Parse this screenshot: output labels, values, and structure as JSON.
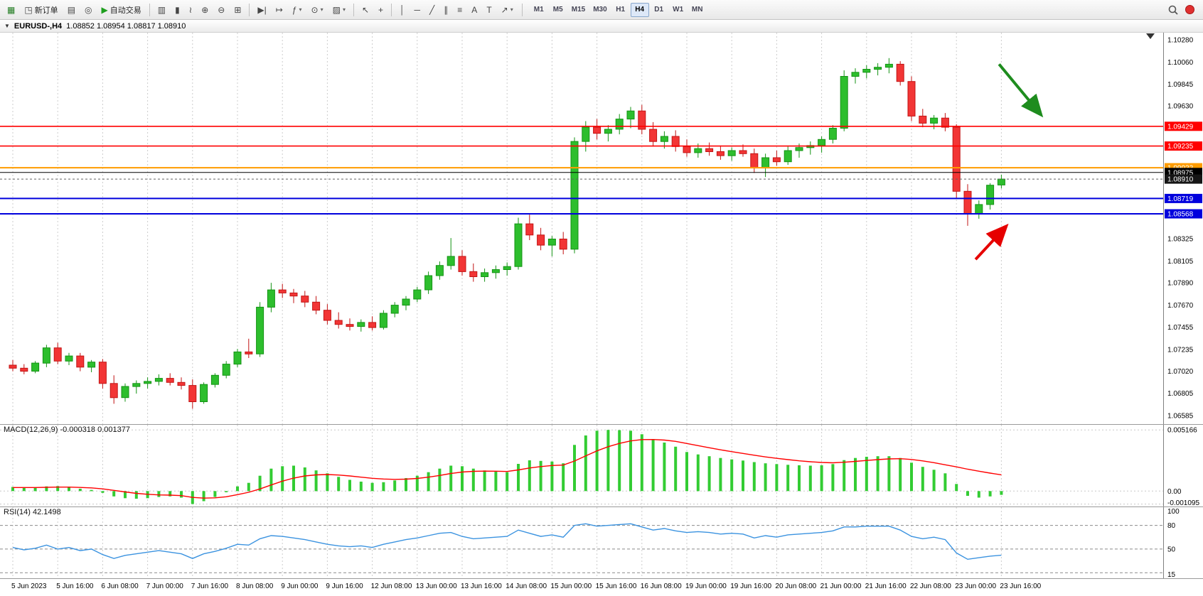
{
  "window": {
    "title": "EURUSD-,H4"
  },
  "toolbar": {
    "groups": [
      {
        "items": [
          {
            "name": "new-chart-button",
            "glyph": "▦",
            "color": "#1e7a1e"
          },
          {
            "name": "new-order-button",
            "glyph": "◳",
            "label": "新订单"
          },
          {
            "name": "screenshot-button",
            "glyph": "▤"
          },
          {
            "name": "community-button",
            "glyph": "◎"
          },
          {
            "name": "autotrading-button",
            "glyph": "▶",
            "label": "自动交易",
            "color": "#1e9e1e"
          }
        ]
      },
      {
        "items": [
          {
            "name": "bar-chart-button",
            "glyph": "▥"
          },
          {
            "name": "candlestick-chart-button",
            "glyph": "▮"
          },
          {
            "name": "line-chart-button",
            "glyph": "≀"
          },
          {
            "name": "zoom-in-button",
            "glyph": "⊕"
          },
          {
            "name": "zoom-out-button",
            "glyph": "⊖"
          },
          {
            "name": "tile-windows-button",
            "glyph": "⊞"
          }
        ]
      },
      {
        "items": [
          {
            "name": "auto-scroll-button",
            "glyph": "▶|"
          },
          {
            "name": "chart-shift-button",
            "glyph": "↦"
          },
          {
            "name": "indicators-button",
            "glyph": "ƒ",
            "caret": true
          },
          {
            "name": "periods-button",
            "glyph": "⊙",
            "caret": true
          },
          {
            "name": "templates-button",
            "glyph": "▨",
            "caret": true
          }
        ]
      },
      {
        "items": [
          {
            "name": "cursor-button",
            "glyph": "↖"
          },
          {
            "name": "crosshair-button",
            "glyph": "+"
          }
        ]
      },
      {
        "items": [
          {
            "name": "vertical-line-button",
            "glyph": "│"
          },
          {
            "name": "horizontal-line-button",
            "glyph": "─"
          },
          {
            "name": "trendline-button",
            "glyph": "╱"
          },
          {
            "name": "channel-button",
            "glyph": "∥"
          },
          {
            "name": "fibonacci-button",
            "glyph": "≡"
          },
          {
            "name": "text-button",
            "glyph": "A"
          },
          {
            "name": "text-label-button",
            "glyph": "T"
          },
          {
            "name": "arrows-button",
            "glyph": "↗",
            "caret": true
          }
        ]
      }
    ],
    "timeframes": [
      "M1",
      "M5",
      "M15",
      "M30",
      "H1",
      "H4",
      "D1",
      "W1",
      "MN"
    ],
    "active_timeframe": "H4"
  },
  "titlebar": {
    "dropdown_icon": "▼",
    "shift_marker_icon": "▼",
    "symbol_period": "EURUSD-,H4",
    "ohlc": "1.08852  1.08954  1.08817  1.08910"
  },
  "colors": {
    "up": "#2DBE2D",
    "up_border": "#149314",
    "down": "#F23535",
    "down_border": "#C21414",
    "grid": "#cccccc",
    "macd": "#33CC33",
    "signal": "#FF0000",
    "rsi": "#3B93E0",
    "axis_text": "#000000"
  },
  "chart_data": [
    {
      "type": "candlestick",
      "symbol": "EURUSD-",
      "period": "H4",
      "current_bar": {
        "open": 1.08852,
        "high": 1.08954,
        "low": 1.08817,
        "close": 1.0891
      },
      "ylim": [
        1.065,
        1.1035
      ],
      "y_ticks": [
        1.1028,
        1.1006,
        1.09845,
        1.0963,
        1.08325,
        1.08105,
        1.0789,
        1.0767,
        1.07455,
        1.07235,
        1.0702,
        1.06805,
        1.06585
      ],
      "x_label_step": 4,
      "x_labels": [
        "5 Jun 2023",
        "5 Jun 16:00",
        "6 Jun 08:00",
        "7 Jun 00:00",
        "7 Jun 16:00",
        "8 Jun 08:00",
        "9 Jun 00:00",
        "9 Jun 16:00",
        "12 Jun 08:00",
        "13 Jun 00:00",
        "13 Jun 16:00",
        "14 Jun 08:00",
        "15 Jun 00:00",
        "15 Jun 16:00",
        "16 Jun 08:00",
        "19 Jun 00:00",
        "19 Jun 16:00",
        "20 Jun 08:00",
        "21 Jun 00:00",
        "21 Jun 16:00",
        "22 Jun 08:00",
        "23 Jun 00:00",
        "23 Jun 16:00"
      ],
      "hlines": [
        {
          "price": 1.09429,
          "color": "#ff0000",
          "width": 1.6
        },
        {
          "price": 1.09235,
          "color": "#ff0000",
          "width": 1.6
        },
        {
          "price": 1.09022,
          "color": "#ff9c00",
          "width": 2
        },
        {
          "price": 1.08975,
          "color": "#000000",
          "width": 1,
          "box": "#000000"
        },
        {
          "price": 1.0891,
          "color": "#606060",
          "width": 1,
          "style": "current",
          "box": "#151515"
        },
        {
          "price": 1.08719,
          "color": "#0000dd",
          "width": 2
        },
        {
          "price": 1.08568,
          "color": "#0000dd",
          "width": 2
        }
      ],
      "arrows": [
        {
          "name": "down-trend-arrow",
          "color": "#1E8C1E",
          "from": [
            87.8,
            1.1004
          ],
          "to": [
            91.4,
            1.0956
          ]
        },
        {
          "name": "up-bounce-arrow",
          "color": "#E60000",
          "from": [
            85.7,
            1.0812
          ],
          "to": [
            88.3,
            1.0843
          ]
        }
      ],
      "candles": [
        [
          1.0708,
          1.0713,
          1.0702,
          1.0705
        ],
        [
          1.0705,
          1.0709,
          1.0699,
          1.0702
        ],
        [
          1.0702,
          1.0712,
          1.07,
          1.071
        ],
        [
          1.071,
          1.0728,
          1.0706,
          1.0725
        ],
        [
          1.0725,
          1.073,
          1.0709,
          1.0712
        ],
        [
          1.0712,
          1.072,
          1.0708,
          1.0717
        ],
        [
          1.0717,
          1.072,
          1.0702,
          1.0706
        ],
        [
          1.0706,
          1.0713,
          1.0701,
          1.0711
        ],
        [
          1.0711,
          1.0714,
          1.0685,
          1.069
        ],
        [
          1.069,
          1.0698,
          1.067,
          1.0676
        ],
        [
          1.0676,
          1.069,
          1.0672,
          1.0687
        ],
        [
          1.0687,
          1.0693,
          1.068,
          1.069
        ],
        [
          1.069,
          1.0696,
          1.0685,
          1.0692
        ],
        [
          1.0692,
          1.0699,
          1.0688,
          1.0695
        ],
        [
          1.0695,
          1.07,
          1.0688,
          1.0691
        ],
        [
          1.0691,
          1.0696,
          1.0684,
          1.0688
        ],
        [
          1.0688,
          1.0694,
          1.0665,
          1.0672
        ],
        [
          1.0672,
          1.0691,
          1.067,
          1.0689
        ],
        [
          1.0689,
          1.07,
          1.0686,
          1.0698
        ],
        [
          1.0698,
          1.0712,
          1.0695,
          1.0709
        ],
        [
          1.0709,
          1.0724,
          1.0706,
          1.0721
        ],
        [
          1.0721,
          1.0734,
          1.0715,
          1.0719
        ],
        [
          1.0719,
          1.077,
          1.0716,
          1.0765
        ],
        [
          1.0765,
          1.0789,
          1.076,
          1.0782
        ],
        [
          1.0782,
          1.0788,
          1.0774,
          1.0779
        ],
        [
          1.0779,
          1.0783,
          1.0769,
          1.0776
        ],
        [
          1.0776,
          1.0781,
          1.0765,
          1.077
        ],
        [
          1.077,
          1.0776,
          1.0758,
          1.0762
        ],
        [
          1.0762,
          1.0768,
          1.0748,
          1.0752
        ],
        [
          1.0752,
          1.076,
          1.0744,
          1.0748
        ],
        [
          1.0748,
          1.0754,
          1.0742,
          1.0746
        ],
        [
          1.0746,
          1.0753,
          1.0741,
          1.075
        ],
        [
          1.075,
          1.0756,
          1.0742,
          1.0745
        ],
        [
          1.0745,
          1.0762,
          1.0743,
          1.0759
        ],
        [
          1.0759,
          1.077,
          1.0755,
          1.0767
        ],
        [
          1.0767,
          1.0776,
          1.0762,
          1.0773
        ],
        [
          1.0773,
          1.0785,
          1.077,
          1.0782
        ],
        [
          1.0782,
          1.08,
          1.0778,
          1.0796
        ],
        [
          1.0796,
          1.081,
          1.0792,
          1.0806
        ],
        [
          1.0806,
          1.0833,
          1.0802,
          1.0815
        ],
        [
          1.0815,
          1.0821,
          1.0796,
          1.08
        ],
        [
          1.08,
          1.0808,
          1.079,
          1.0795
        ],
        [
          1.0795,
          1.0803,
          1.079,
          1.0799
        ],
        [
          1.0799,
          1.0806,
          1.0793,
          1.0802
        ],
        [
          1.0802,
          1.0809,
          1.0796,
          1.0805
        ],
        [
          1.0805,
          1.0853,
          1.0802,
          1.0847
        ],
        [
          1.0847,
          1.0856,
          1.0831,
          1.0836
        ],
        [
          1.0836,
          1.0843,
          1.0821,
          1.0826
        ],
        [
          1.0826,
          1.0835,
          1.0815,
          1.0832
        ],
        [
          1.0832,
          1.0839,
          1.0817,
          1.0822
        ],
        [
          1.0822,
          1.0932,
          1.0818,
          1.0928
        ],
        [
          1.0928,
          1.0948,
          1.0918,
          1.0942
        ],
        [
          1.0942,
          1.095,
          1.093,
          1.0936
        ],
        [
          1.0936,
          1.0944,
          1.0928,
          1.094
        ],
        [
          1.094,
          1.0955,
          1.0935,
          1.095
        ],
        [
          1.095,
          1.0962,
          1.0941,
          1.0958
        ],
        [
          1.0958,
          1.0964,
          1.0935,
          1.094
        ],
        [
          1.094,
          1.0947,
          1.0923,
          1.0928
        ],
        [
          1.0928,
          1.0938,
          1.0921,
          1.0933
        ],
        [
          1.0933,
          1.0939,
          1.0918,
          1.0923
        ],
        [
          1.0923,
          1.093,
          1.0913,
          1.0917
        ],
        [
          1.0917,
          1.0926,
          1.0912,
          1.0921
        ],
        [
          1.0921,
          1.0927,
          1.0914,
          1.0918
        ],
        [
          1.0918,
          1.0924,
          1.091,
          1.0914
        ],
        [
          1.0914,
          1.0922,
          1.0909,
          1.0919
        ],
        [
          1.0919,
          1.0925,
          1.0913,
          1.0916
        ],
        [
          1.0916,
          1.0921,
          1.0897,
          1.0902
        ],
        [
          1.0902,
          1.0916,
          1.0893,
          1.0912
        ],
        [
          1.0912,
          1.0919,
          1.0904,
          1.0908
        ],
        [
          1.0908,
          1.0923,
          1.0905,
          1.0919
        ],
        [
          1.0919,
          1.0926,
          1.0912,
          1.0922
        ],
        [
          1.0922,
          1.0928,
          1.0915,
          1.0924
        ],
        [
          1.0924,
          1.0933,
          1.0917,
          1.093
        ],
        [
          1.093,
          1.0944,
          1.0926,
          1.0941
        ],
        [
          1.0941,
          1.0998,
          1.0938,
          1.0992
        ],
        [
          1.0992,
          1.1,
          1.0985,
          1.0996
        ],
        [
          1.0996,
          1.1003,
          1.099,
          1.0999
        ],
        [
          1.0999,
          1.1005,
          1.0993,
          1.1001
        ],
        [
          1.1001,
          1.101,
          1.0995,
          1.1004
        ],
        [
          1.1004,
          1.1007,
          1.0983,
          1.0987
        ],
        [
          1.0987,
          1.0992,
          1.0948,
          1.0953
        ],
        [
          1.0953,
          1.096,
          1.0942,
          1.0946
        ],
        [
          1.0946,
          1.0954,
          1.094,
          1.0951
        ],
        [
          1.0951,
          1.0956,
          1.0938,
          1.0942
        ],
        [
          1.0942,
          1.0945,
          1.0872,
          1.0879
        ],
        [
          1.0879,
          1.0886,
          1.0845,
          1.0857
        ],
        [
          1.0857,
          1.087,
          1.0852,
          1.0866
        ],
        [
          1.0866,
          1.0887,
          1.0861,
          1.0885
        ],
        [
          1.08852,
          1.08954,
          1.08817,
          1.0891
        ]
      ]
    },
    {
      "type": "bar",
      "name": "MACD",
      "label": "MACD(12,26,9) -0.000318 0.001377",
      "params": "12,26,9",
      "value": -0.000318,
      "signal_value": 0.001377,
      "ylim": [
        -0.0013,
        0.0056
      ],
      "y_ticks": [
        {
          "v": 0.005166,
          "t": "0.005166"
        },
        {
          "v": 0,
          "t": "0.00"
        },
        {
          "v": -0.001095,
          "t": "-0.001095"
        }
      ],
      "values": [
        0.00035,
        0.0003,
        0.00028,
        0.0004,
        0.00042,
        0.00035,
        0.0002,
        0.0001,
        -0.00015,
        -0.00045,
        -0.0006,
        -0.00065,
        -0.0006,
        -0.0005,
        -0.00045,
        -0.00055,
        -0.001095,
        -0.00085,
        -0.0005,
        -0.0001,
        0.0004,
        0.0007,
        0.0013,
        0.0019,
        0.0021,
        0.00215,
        0.002,
        0.00175,
        0.0015,
        0.0012,
        0.00095,
        0.0008,
        0.0007,
        0.00075,
        0.0009,
        0.0011,
        0.0013,
        0.0016,
        0.0019,
        0.00215,
        0.0021,
        0.0019,
        0.00175,
        0.00165,
        0.0016,
        0.0023,
        0.0026,
        0.00255,
        0.0025,
        0.00235,
        0.0039,
        0.0047,
        0.0051,
        0.005166,
        0.00515,
        0.0051,
        0.0048,
        0.0044,
        0.0041,
        0.00375,
        0.0033,
        0.0031,
        0.00295,
        0.0028,
        0.00268,
        0.00258,
        0.00245,
        0.00235,
        0.00228,
        0.00222,
        0.00218,
        0.00215,
        0.00218,
        0.00228,
        0.00262,
        0.0028,
        0.0029,
        0.00295,
        0.00295,
        0.0028,
        0.0024,
        0.00205,
        0.0018,
        0.0015,
        0.0006,
        -0.0004,
        -0.00055,
        -0.00045,
        -0.000318
      ],
      "signal": [
        0.0003,
        0.0003,
        0.0003,
        0.00032,
        0.00034,
        0.00034,
        0.00031,
        0.00027,
        0.00019,
        6e-05,
        -7e-05,
        -0.00019,
        -0.00027,
        -0.00032,
        -0.00034,
        -0.00038,
        -0.00053,
        -0.00059,
        -0.00057,
        -0.00048,
        -0.0003,
        -0.0001,
        0.00018,
        0.00052,
        0.00084,
        0.0011,
        0.00128,
        0.00137,
        0.0014,
        0.00136,
        0.00128,
        0.00118,
        0.00108,
        0.00102,
        0.00099,
        0.00101,
        0.00107,
        0.00118,
        0.00132,
        0.00149,
        0.00161,
        0.00167,
        0.00169,
        0.00168,
        0.00166,
        0.00179,
        0.00195,
        0.00207,
        0.00216,
        0.0022,
        0.00254,
        0.00297,
        0.0034,
        0.00375,
        0.00403,
        0.00424,
        0.00435,
        0.00436,
        0.00431,
        0.0042,
        0.00402,
        0.00384,
        0.00366,
        0.00349,
        0.00333,
        0.00318,
        0.00303,
        0.00289,
        0.00277,
        0.00266,
        0.00256,
        0.00248,
        0.00242,
        0.00239,
        0.00244,
        0.00251,
        0.00259,
        0.00266,
        0.00272,
        0.00274,
        0.00267,
        0.00255,
        0.0024,
        0.00222,
        0.00205,
        0.00185,
        0.00168,
        0.00152,
        0.001377
      ]
    },
    {
      "type": "line",
      "name": "RSI",
      "label": "RSI(14) 42.1498",
      "period": 14,
      "value": 42.1498,
      "ylim": [
        13,
        103
      ],
      "levels": [
        80,
        50,
        20
      ],
      "y_ticks": [
        {
          "v": 100,
          "t": "100"
        },
        {
          "v": 80,
          "t": "80"
        },
        {
          "v": 50,
          "t": "50"
        },
        {
          "v": 15,
          "t": "15"
        }
      ],
      "values": [
        52,
        49,
        51,
        55,
        50,
        52,
        48,
        50,
        43,
        38,
        42,
        44,
        46,
        48,
        46,
        44,
        38,
        44,
        47,
        51,
        56,
        55,
        63,
        67,
        66,
        64,
        62,
        59,
        56,
        54,
        53,
        54,
        52,
        56,
        59,
        62,
        64,
        67,
        70,
        71,
        66,
        63,
        64,
        65,
        66,
        74,
        70,
        66,
        68,
        65,
        80,
        82,
        79,
        80,
        81,
        82,
        78,
        74,
        76,
        73,
        71,
        72,
        71,
        69,
        70,
        69,
        64,
        67,
        65,
        68,
        69,
        70,
        71,
        73,
        78,
        78,
        79,
        79,
        79,
        74,
        66,
        63,
        65,
        62,
        45,
        37,
        39,
        41,
        42.1498
      ]
    }
  ]
}
